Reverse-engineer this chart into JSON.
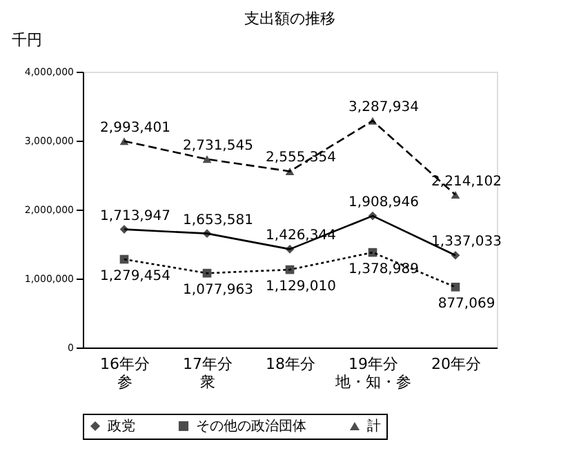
{
  "chart_data": {
    "type": "line",
    "title": "支出額の推移",
    "ylabel": "千円",
    "categories": [
      "16年分参",
      "17年分衆",
      "18年分",
      "19年分地・知・参",
      "20年分"
    ],
    "series": [
      {
        "name": "政党",
        "color": "#000000",
        "marker": "diamond",
        "line_style": "solid",
        "values": [
          1713947,
          1653581,
          1426344,
          1908946,
          1337033
        ],
        "value_labels": [
          "1,713,947",
          "1,653,581",
          "1,426,344",
          "1,908,946",
          "1,337,033"
        ]
      },
      {
        "name": "その他の政治団体",
        "color": "#000000",
        "marker": "square",
        "line_style": "dotted",
        "values": [
          1279454,
          1077963,
          1129010,
          1378989,
          877069
        ],
        "value_labels": [
          "1,279,454",
          "1,077,963",
          "1,129,010",
          "1,378,989",
          "877,069"
        ]
      },
      {
        "name": "計",
        "color": "#000000",
        "marker": "triangle",
        "line_style": "dashed",
        "values": [
          2993401,
          2731545,
          2555354,
          3287934,
          2214102
        ],
        "value_labels": [
          "2,993,401",
          "2,731,545",
          "2,555,354",
          "3,287,934",
          "2,214,102"
        ]
      }
    ],
    "ylim": [
      0,
      4000000
    ],
    "yticks": [
      0,
      {
        "value": 1000000,
        "label": "1,000,000"
      },
      {
        "value": 2000000,
        "label": "2,000,000"
      },
      {
        "value": 3000000,
        "label": "3,000,000"
      },
      {
        "value": 4000000,
        "label": "4,000,000"
      }
    ],
    "grid": false,
    "legend": "bottom"
  }
}
